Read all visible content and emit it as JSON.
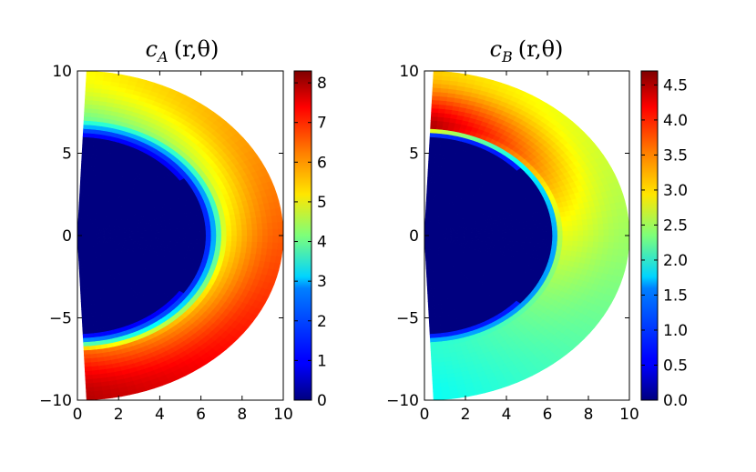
{
  "chart_data": [
    {
      "type": "heatmap",
      "title": {
        "symbol": "c",
        "subscript": "A",
        "args": "(r,θ)"
      },
      "x_ticks": [
        "0",
        "2",
        "4",
        "6",
        "8",
        "10"
      ],
      "y_ticks": [
        "10",
        "5",
        "0",
        "−5",
        "−10"
      ],
      "xlim": [
        0,
        10
      ],
      "ylim": [
        -10,
        10
      ],
      "colorbar_ticks": [
        "8",
        "7",
        "6",
        "5",
        "4",
        "3",
        "2",
        "1",
        "0"
      ],
      "colorbar_range": [
        0,
        8.3
      ],
      "colormap": "jet",
      "inner_radius": 6.2,
      "outer_radius": 10,
      "values_description_top": 5.3,
      "values_description_bottom": 8.0
    },
    {
      "type": "heatmap",
      "title": {
        "symbol": "c",
        "subscript": "B",
        "args": "(r,θ)"
      },
      "x_ticks": [
        "0",
        "2",
        "4",
        "6",
        "8",
        "10"
      ],
      "y_ticks": [
        "10",
        "5",
        "0",
        "−5",
        "−10"
      ],
      "xlim": [
        0,
        10
      ],
      "ylim": [
        -10,
        10
      ],
      "colorbar_ticks": [
        "4.5",
        "4.0",
        "3.5",
        "3.0",
        "2.5",
        "2.0",
        "1.5",
        "1.0",
        "0.5",
        "0.0"
      ],
      "colorbar_range": [
        0,
        4.7
      ],
      "colormap": "jet",
      "inner_radius": 6.2,
      "outer_radius": 10
    }
  ]
}
